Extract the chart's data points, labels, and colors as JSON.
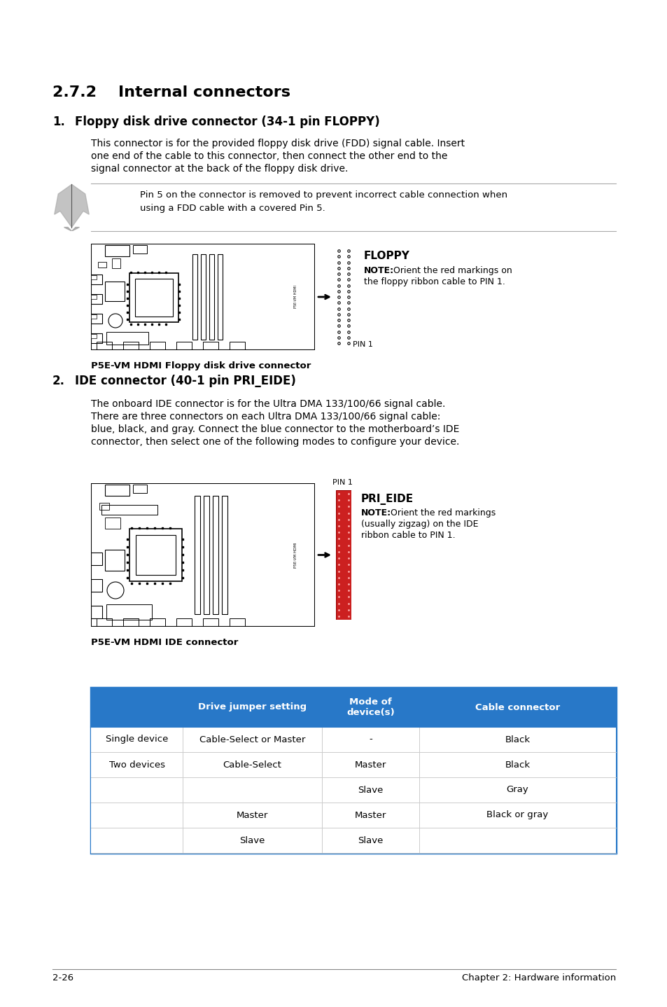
{
  "bg_color": "#ffffff",
  "section_title": "2.7.2    Internal connectors",
  "item1_number": "1.",
  "item1_title": "Floppy disk drive connector (34-1 pin FLOPPY)",
  "item1_body_line1": "This connector is for the provided floppy disk drive (FDD) signal cable. Insert",
  "item1_body_line2": "one end of the cable to this connector, then connect the other end to the",
  "item1_body_line3": "signal connector at the back of the floppy disk drive.",
  "note1_text_line1": "Pin 5 on the connector is removed to prevent incorrect cable connection when",
  "note1_text_line2": "using a FDD cable with a covered Pin 5.",
  "floppy_label": "FLOPPY",
  "floppy_note_bold": "NOTE:",
  "floppy_note_rest": " Orient the red markings on",
  "floppy_note_line2": "the floppy ribbon cable to PIN 1.",
  "floppy_pin1_label": "PIN 1",
  "floppy_caption": "P5E-VM HDMI Floppy disk drive connector",
  "item2_number": "2.",
  "item2_title": "IDE connector (40-1 pin PRI_EIDE)",
  "item2_body_line1": "The onboard IDE connector is for the Ultra DMA 133/100/66 signal cable.",
  "item2_body_line2": "There are three connectors on each Ultra DMA 133/100/66 signal cable:",
  "item2_body_line3": "blue, black, and gray. Connect the blue connector to the motherboard’s IDE",
  "item2_body_line4": "connector, then select one of the following modes to configure your device.",
  "ide_pin1_label": "PIN 1",
  "ide_label": "PRI_EIDE",
  "ide_note_bold": "NOTE:",
  "ide_note_rest": " Orient the red markings",
  "ide_note_line2": "(usually zigzag) on the IDE",
  "ide_note_line3": "ribbon cable to PIN 1.",
  "ide_caption": "P5E-VM HDMI IDE connector",
  "table_header_bg": "#2878c8",
  "table_border_color": "#2878c8",
  "table_header_texts": [
    "",
    "Drive jumper setting",
    "Mode of\ndevice(s)",
    "Cable connector"
  ],
  "table_rows": [
    [
      "Single device",
      "Cable-Select or Master",
      "-",
      "Black"
    ],
    [
      "Two devices",
      "Cable-Select",
      "Master",
      "Black"
    ],
    [
      "",
      "",
      "Slave",
      "Gray"
    ],
    [
      "",
      "Master",
      "Master",
      "Black or gray"
    ],
    [
      "",
      "Slave",
      "Slave",
      ""
    ]
  ],
  "footer_left": "2-26",
  "footer_right": "Chapter 2: Hardware information"
}
